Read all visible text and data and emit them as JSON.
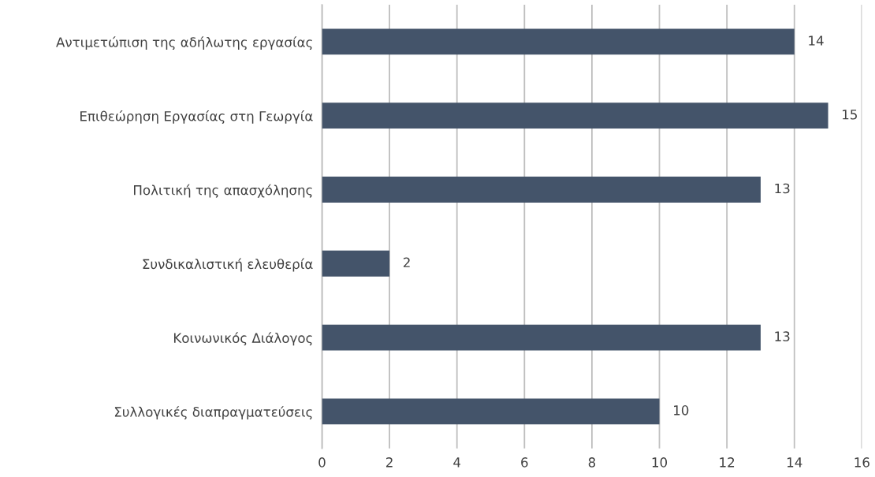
{
  "chart_data": {
    "type": "bar",
    "orientation": "horizontal",
    "categories": [
      "Αντιμετώπιση της αδήλωτης εργασίας",
      "Επιθεώρηση Εργασίας στη Γεωργία",
      "Πολιτική της απασχόλησης",
      "Συνδικαλιστική ελευθερία",
      "Κοινωνικός Διάλογος",
      "Συλλογικές διαπραγματεύσεις"
    ],
    "values": [
      14,
      15,
      13,
      2,
      13,
      10
    ],
    "color": "#44546a",
    "xlim": [
      0,
      16
    ],
    "xticks": [
      0,
      2,
      4,
      6,
      8,
      10,
      12,
      14,
      16
    ],
    "grid": "x",
    "data_labels": true
  }
}
